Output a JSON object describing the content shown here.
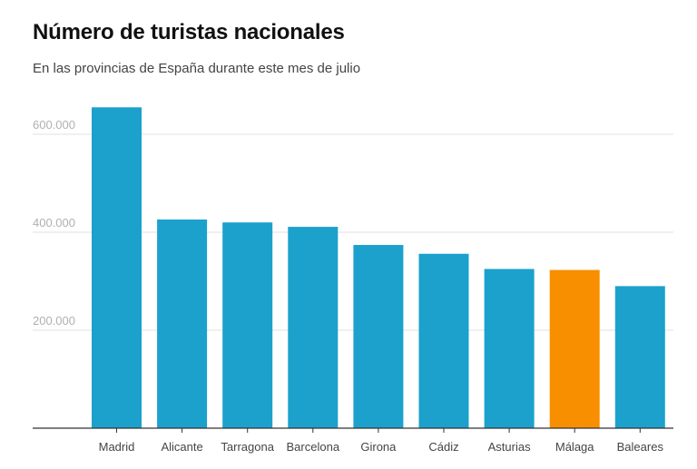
{
  "chart_data": {
    "type": "bar",
    "title": "Número de turistas nacionales",
    "subtitle": "En las provincias de España durante este mes de julio",
    "xlabel": "",
    "ylabel": "",
    "categories": [
      "Madrid",
      "Alicante",
      "Tarragona",
      "Barcelona",
      "Girona",
      "Cádiz",
      "Asturias",
      "Málaga",
      "Baleares"
    ],
    "values": [
      655000,
      426000,
      420000,
      411000,
      374000,
      356000,
      325000,
      323000,
      290000
    ],
    "highlight": "Málaga",
    "colors": {
      "default": "#1ba1cc",
      "highlight": "#f78f00",
      "grid": "#e6e6e6",
      "axis": "#333333"
    },
    "ylim": [
      0,
      690000
    ],
    "yticks": [
      200000,
      400000,
      600000
    ],
    "ytick_labels": [
      "200.000",
      "400.000",
      "600.000"
    ],
    "grid": true,
    "legend": "none"
  }
}
